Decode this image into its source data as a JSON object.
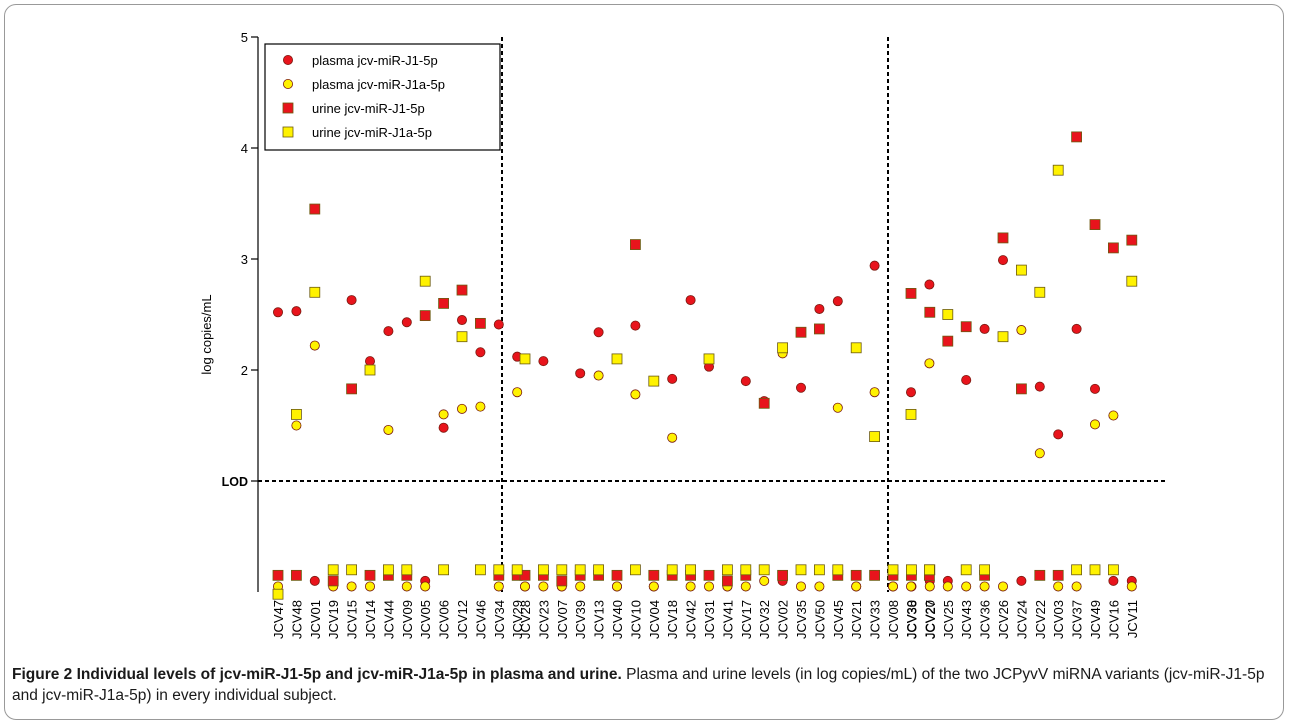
{
  "chart_data": {
    "type": "scatter",
    "ylabel": "log copies/mL",
    "ylim": [
      0,
      5
    ],
    "yticks": [
      "2",
      "3",
      "4",
      "5"
    ],
    "lod_label": "LOD",
    "lod_value": 1,
    "grid": false,
    "legend_position": "top-left",
    "groups": [
      {
        "categories": [
          "JCV47",
          "JCV48",
          "JCV01",
          "JCV19",
          "JCV15",
          "JCV14",
          "JCV44",
          "JCV09",
          "JCV05",
          "JCV06",
          "JCV12",
          "JCV46",
          "JCV34",
          "JCV29"
        ]
      },
      {
        "categories": [
          "JCV28",
          "JCV23",
          "JCV07",
          "JCV39",
          "JCV13",
          "JCV40",
          "JCV10",
          "JCV04",
          "JCV18",
          "JCV42",
          "JCV31",
          "JCV41",
          "JCV17",
          "JCV32",
          "JCV02",
          "JCV35",
          "JCV50",
          "JCV45",
          "JCV21",
          "JCV33",
          "JCV08",
          "JCV38",
          "JCV27"
        ]
      },
      {
        "categories": [
          "JCV30",
          "JCV20",
          "JCV25",
          "JCV43",
          "JCV36",
          "JCV26",
          "JCV24",
          "JCV22",
          "JCV03",
          "JCV37",
          "JCV49",
          "JCV16",
          "JCV11"
        ]
      }
    ],
    "series": [
      {
        "name": "plasma jcv-miR-J1-5p",
        "marker": "circle",
        "color": "#e8141c",
        "values": [
          2.52,
          2.53,
          0.1,
          0.1,
          2.63,
          2.08,
          2.35,
          2.43,
          0.1,
          1.48,
          2.45,
          2.16,
          2.41,
          2.12,
          0.05,
          2.08,
          0.05,
          1.97,
          2.34,
          0.05,
          2.4,
          0.05,
          1.92,
          2.63,
          2.03,
          0.05,
          1.9,
          1.72,
          0.1,
          1.84,
          2.55,
          2.62,
          0.05,
          2.94,
          0.05,
          0.05,
          0.1,
          1.8,
          2.77,
          0.1,
          1.91,
          2.37,
          2.99,
          0.1,
          1.85,
          1.42,
          2.37,
          1.83,
          0.1,
          0.1
        ]
      },
      {
        "name": "plasma jcv-miR-J1a-5p",
        "marker": "circle",
        "color": "#fff200",
        "values": [
          0.05,
          1.5,
          2.22,
          0.05,
          0.05,
          0.05,
          1.46,
          0.05,
          0.05,
          1.6,
          1.65,
          1.67,
          0.05,
          1.8,
          0.05,
          0.05,
          0.05,
          0.05,
          1.95,
          0.05,
          1.78,
          0.05,
          1.39,
          0.05,
          0.05,
          0.05,
          0.05,
          0.1,
          2.15,
          0.05,
          0.05,
          1.66,
          0.05,
          1.8,
          0.05,
          0.05,
          0.05,
          0.05,
          2.06,
          0.05,
          0.05,
          0.05,
          0.05,
          2.36,
          1.25,
          0.05,
          0.05,
          1.51,
          1.59,
          0.05
        ]
      },
      {
        "name": "urine jcv-miR-J1-5p",
        "marker": "square",
        "color": "#e8141c",
        "values": [
          0.15,
          0.15,
          3.45,
          0.1,
          1.83,
          0.15,
          0.15,
          0.15,
          2.49,
          2.6,
          2.72,
          2.42,
          0.15,
          0.15,
          0.15,
          0.15,
          0.1,
          0.15,
          0.15,
          0.15,
          3.13,
          0.15,
          0.15,
          0.15,
          0.15,
          0.1,
          0.15,
          1.7,
          0.15,
          2.34,
          2.37,
          0.15,
          0.15,
          0.15,
          0.15,
          0.15,
          2.52,
          2.69,
          0.15,
          2.26,
          2.39,
          0.15,
          3.19,
          1.83,
          0.15,
          0.15,
          4.1,
          3.31,
          3.1,
          3.17
        ]
      },
      {
        "name": "urine jcv-miR-J1a-5p",
        "marker": "square",
        "color": "#fff200",
        "values": [
          -0.02,
          1.6,
          2.7,
          0.2,
          0.2,
          2.0,
          0.2,
          0.2,
          2.8,
          0.2,
          2.3,
          0.2,
          0.2,
          0.2,
          2.1,
          0.2,
          0.2,
          0.2,
          0.2,
          2.1,
          0.2,
          1.9,
          0.2,
          0.2,
          2.1,
          0.2,
          0.2,
          0.2,
          2.2,
          0.2,
          0.2,
          0.2,
          2.2,
          1.4,
          0.2,
          0.2,
          0.2,
          1.6,
          0.2,
          2.5,
          0.2,
          0.2,
          2.3,
          2.9,
          2.7,
          3.8,
          0.2,
          0.2,
          0.2,
          2.8
        ]
      }
    ]
  },
  "caption": {
    "bold": "Figure 2 Individual levels of jcv-miR-J1-5p and jcv-miR-J1a-5p in plasma and urine.",
    "text": "Plasma and urine levels (in log copies/mL) of the two JCPyvV miRNA variants (jcv-miR-J1-5p and jcv-miR-J1a-5p) in every individual subject."
  }
}
